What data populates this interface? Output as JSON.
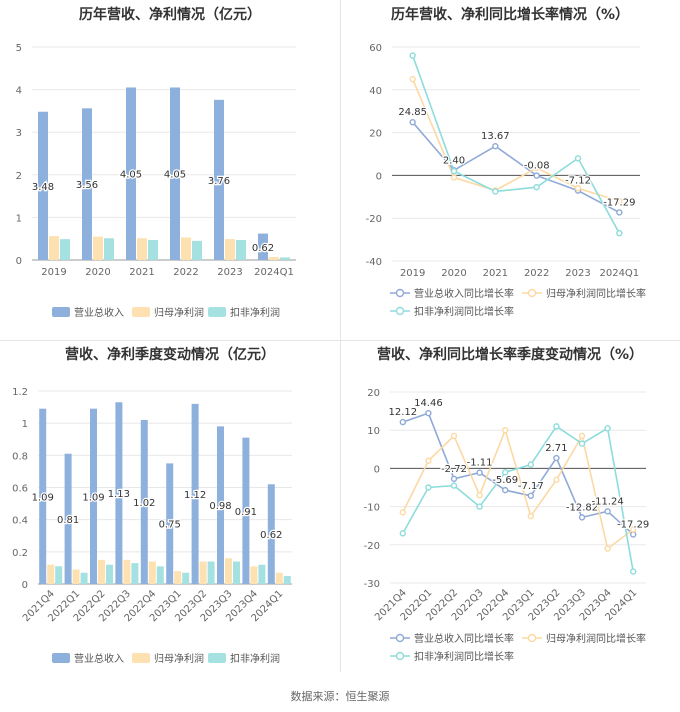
{
  "source": "数据来源：恒生聚源",
  "colors": {
    "revenue": "#8eb0dd",
    "net_profit": "#fde1b1",
    "deducted": "#a6e1e2",
    "rev_line": "#8fa9d8",
    "np_line": "#fcd9a3",
    "ded_line": "#8ddcdc"
  },
  "chart_data": [
    {
      "type": "bar",
      "title": "历年营收、净利情况（亿元）",
      "categories": [
        "2019",
        "2020",
        "2021",
        "2022",
        "2023",
        "2024Q1"
      ],
      "ylim": [
        0,
        5
      ],
      "yticks": [
        "0",
        "1",
        "2",
        "3",
        "4",
        "5"
      ],
      "series": [
        {
          "name": "营业总收入",
          "values": [
            3.48,
            3.56,
            4.05,
            4.05,
            3.76,
            0.62
          ],
          "labels": [
            "3.48",
            "3.56",
            "4.05",
            "4.05",
            "3.76",
            "0.62"
          ]
        },
        {
          "name": "归母净利润",
          "values": [
            0.56,
            0.55,
            0.51,
            0.53,
            0.49,
            0.07
          ]
        },
        {
          "name": "扣非净利润",
          "values": [
            0.49,
            0.51,
            0.47,
            0.45,
            0.47,
            0.06
          ]
        }
      ],
      "legend": "bottom",
      "grid": true
    },
    {
      "type": "line",
      "title": "历年营收、净利同比增长率情况（%）",
      "categories": [
        "2019",
        "2020",
        "2021",
        "2022",
        "2023",
        "2024Q1"
      ],
      "ylim": [
        -40,
        60
      ],
      "yticks": [
        "-40",
        "-20",
        "0",
        "20",
        "40",
        "60"
      ],
      "series": [
        {
          "name": "营业总收入同比增长率",
          "values": [
            24.85,
            2.4,
            13.67,
            -0.08,
            -7.12,
            -17.29
          ],
          "labels": [
            "24.85",
            "2.40",
            "13.67",
            "-0.08",
            "-7.12",
            "-17.29"
          ]
        },
        {
          "name": "归母净利润同比增长率",
          "values": [
            45,
            -1,
            -7,
            3.5,
            -6,
            -12
          ]
        },
        {
          "name": "扣非净利润同比增长率",
          "values": [
            56,
            2,
            -7.5,
            -5.5,
            8,
            -27
          ]
        }
      ],
      "legend": "bottom",
      "grid": true
    },
    {
      "type": "bar",
      "title": "营收、净利季度变动情况（亿元）",
      "categories": [
        "2021Q4",
        "2022Q1",
        "2022Q2",
        "2022Q3",
        "2022Q4",
        "2023Q1",
        "2023Q2",
        "2023Q3",
        "2023Q4",
        "2024Q1"
      ],
      "ylim": [
        0,
        1.2
      ],
      "yticks": [
        "0",
        "0.2",
        "0.4",
        "0.6",
        "0.8",
        "1",
        "1.2"
      ],
      "series": [
        {
          "name": "营业总收入",
          "values": [
            1.09,
            0.81,
            1.09,
            1.13,
            1.02,
            0.75,
            1.12,
            0.98,
            0.91,
            0.62
          ],
          "labels": [
            "1.09",
            "0.81",
            "1.09",
            "1.13",
            "1.02",
            "0.75",
            "1.12",
            "0.98",
            "0.91",
            "0.62"
          ]
        },
        {
          "name": "归母净利润",
          "values": [
            0.12,
            0.09,
            0.15,
            0.15,
            0.14,
            0.08,
            0.14,
            0.16,
            0.11,
            0.07
          ]
        },
        {
          "name": "扣非净利润",
          "values": [
            0.11,
            0.07,
            0.12,
            0.13,
            0.11,
            0.07,
            0.14,
            0.14,
            0.12,
            0.05
          ]
        }
      ],
      "legend": "bottom",
      "grid": true
    },
    {
      "type": "line",
      "title": "营收、净利同比增长率季度变动情况（%）",
      "categories": [
        "2021Q4",
        "2022Q1",
        "2022Q2",
        "2022Q3",
        "2022Q4",
        "2023Q1",
        "2023Q2",
        "2023Q3",
        "2023Q4",
        "2024Q1"
      ],
      "ylim": [
        -30,
        20
      ],
      "yticks": [
        "-30",
        "-20",
        "-10",
        "0",
        "10",
        "20"
      ],
      "series": [
        {
          "name": "营业总收入同比增长率",
          "values": [
            12.12,
            14.46,
            -2.72,
            -1.11,
            -5.69,
            -7.17,
            2.71,
            -12.82,
            -11.24,
            -17.29
          ],
          "labels": [
            "12.12",
            "14.46",
            "-2.72",
            "-1.11",
            "-5.69",
            "-7.17",
            "2.71",
            "-12.82",
            "-11.24",
            "-17.29"
          ]
        },
        {
          "name": "归母净利润同比增长率",
          "values": [
            -11.5,
            2,
            8.5,
            -7,
            10,
            -12.5,
            -3,
            8.5,
            -21,
            -16
          ]
        },
        {
          "name": "扣非净利润同比增长率",
          "values": [
            -17,
            -5,
            -4.5,
            -10,
            -1,
            1,
            11,
            6.5,
            10.5,
            -27
          ]
        }
      ],
      "legend": "bottom",
      "grid": true
    }
  ]
}
